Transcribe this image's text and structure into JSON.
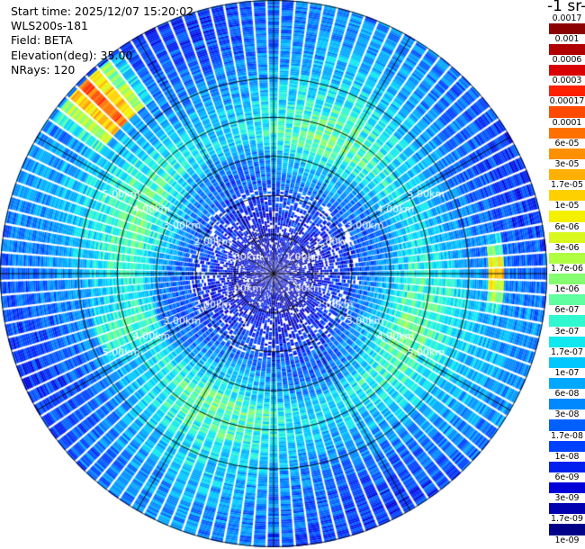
{
  "header": {
    "start_time": "Start time: 2025/12/07 15:20:02",
    "instrument": "WLS200s-181",
    "field": "Field: BETA",
    "elevation": "Elevation(deg): 35.00",
    "nrays": "NRays: 120"
  },
  "colorbar": {
    "title": "-1 sr-",
    "labels": [
      "0.0017",
      "0.001",
      "0.0006",
      "0.0003",
      "0.00017",
      "0.0001",
      "6e-05",
      "3e-05",
      "1.7e-05",
      "1e-05",
      "6e-06",
      "3e-06",
      "1.7e-06",
      "1e-06",
      "6e-07",
      "3e-07",
      "1.7e-07",
      "1e-07",
      "6e-08",
      "3e-08",
      "1.7e-08",
      "1e-08",
      "6e-09",
      "3e-09",
      "1.7e-09",
      "1e-09"
    ],
    "colors": [
      "#8b0000",
      "#b00000",
      "#d80000",
      "#ff2000",
      "#ff4a00",
      "#ff7000",
      "#ff9000",
      "#ffb000",
      "#ffd000",
      "#f5f000",
      "#d8f81e",
      "#b0ff40",
      "#86ff70",
      "#60ffa0",
      "#30f8d0",
      "#10e8f0",
      "#00c8ff",
      "#00a8ff",
      "#0088ff",
      "#0060ff",
      "#0040ff",
      "#0020f0",
      "#0000d8",
      "#0000b0",
      "#000088"
    ]
  },
  "chart_data": {
    "type": "heatmap",
    "subtype": "polar-ppi",
    "nrays": 120,
    "range_rings_km": [
      1.0,
      2.0,
      3.0,
      4.0,
      5.0
    ],
    "ring_label_text": [
      "1.00km",
      "2.00km",
      "3.00km",
      "4.00km",
      "5.00km"
    ],
    "spoke_angles_deg": [
      0,
      30,
      60,
      90,
      120,
      150,
      180,
      210,
      240,
      270,
      300,
      330
    ],
    "max_range_km": 7.0,
    "scale": "log",
    "value_range": [
      1e-09,
      0.0017
    ],
    "radial_profile_log10": [
      [
        0.0,
        -8.5
      ],
      [
        1.0,
        -8.4
      ],
      [
        2.0,
        -7.9
      ],
      [
        3.0,
        -7.1
      ],
      [
        3.6,
        -6.4
      ],
      [
        4.2,
        -6.6
      ],
      [
        5.0,
        -7.1
      ],
      [
        6.0,
        -7.5
      ],
      [
        7.0,
        -7.7
      ]
    ],
    "azimuth_features": [
      {
        "azimuth_deg": 315,
        "range_km": [
          5.4,
          6.9
        ],
        "log10": -4.0
      },
      {
        "azimuth_deg": 90,
        "range_km": [
          5.5,
          5.9
        ],
        "log10": -4.6
      },
      {
        "azimuth_deg": 250,
        "range_km": [
          3.2,
          4.8
        ],
        "log10": -6.2
      }
    ]
  }
}
